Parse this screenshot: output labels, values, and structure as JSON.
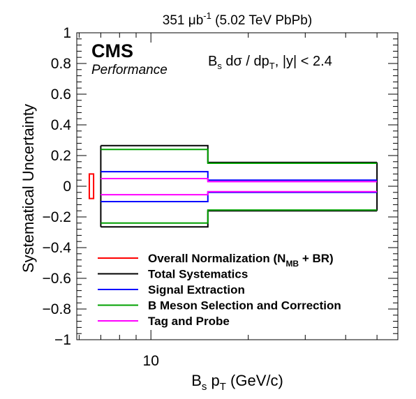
{
  "chart_data": {
    "type": "step",
    "header": {
      "lumi_value": "351",
      "lumi_unit": "μb",
      "lumi_exp": "-1",
      "dataset": "(5.02 TeV PbPb)"
    },
    "cms_label": "CMS",
    "cms_sublabel": "Performance",
    "observable": {
      "prefix": "B",
      "prefix_sub": "s",
      "mid": " dσ / dp",
      "mid_sub": "T",
      "suffix": ", |y| < 2.4"
    },
    "xlabel": {
      "main": "B",
      "sub1": "s",
      "mid": " p",
      "sub2": "T",
      "suffix": " (GeV/c)"
    },
    "ylabel": "Systematical Uncertainty",
    "xscale": "log",
    "xlim": [
      5.9,
      58
    ],
    "ylim": [
      -1,
      1
    ],
    "x_tick_labels": [
      {
        "value": 10,
        "label": "10"
      }
    ],
    "y_ticks": [
      1,
      0.8,
      0.6,
      0.4,
      0.2,
      0,
      -0.2,
      -0.4,
      -0.6,
      -0.8,
      -1
    ],
    "y_tick_labels": [
      "1",
      "0.8",
      "0.6",
      "0.4",
      "0.2",
      "0",
      "−0.2",
      "−0.4",
      "−0.6",
      "−0.8",
      "−1"
    ],
    "bin_edges": [
      7,
      15,
      50
    ],
    "normalization_box": {
      "x": [
        6.45,
        6.65
      ],
      "y": [
        -0.08,
        0.08
      ]
    },
    "series": [
      {
        "name": "Total Systematics",
        "color": "#000000",
        "upper": [
          0.265,
          0.155
        ],
        "lower": [
          -0.265,
          -0.16
        ]
      },
      {
        "name": "Signal Extraction",
        "color": "#0000ff",
        "upper": [
          0.095,
          0.04
        ],
        "lower": [
          -0.1,
          -0.04
        ]
      },
      {
        "name": "B Meson Selection and Correction",
        "color": "#00a000",
        "upper": [
          0.24,
          0.15
        ],
        "lower": [
          -0.24,
          -0.155
        ]
      },
      {
        "name": "Tag and Probe",
        "color": "#ff00ff",
        "upper": [
          0.05,
          0.03
        ],
        "lower": [
          -0.055,
          -0.035
        ]
      }
    ],
    "legend": {
      "position": "bottom-center",
      "entries": [
        {
          "color": "#ff0000",
          "text": "Overall Normalization (N",
          "sub": "MB",
          "after": " + BR)"
        },
        {
          "color": "#000000",
          "text": "Total Systematics"
        },
        {
          "color": "#0000ff",
          "text": "Signal Extraction"
        },
        {
          "color": "#00a000",
          "text": "B Meson Selection and Correction"
        },
        {
          "color": "#ff00ff",
          "text": "Tag and Probe"
        }
      ]
    }
  }
}
